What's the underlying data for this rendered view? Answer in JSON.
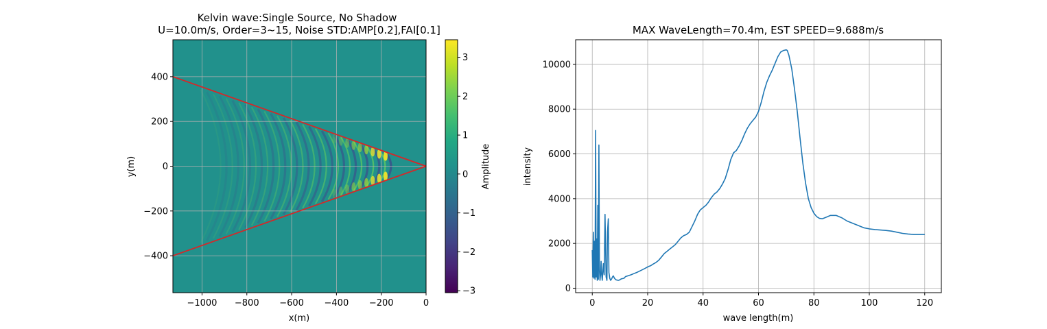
{
  "chart_data": [
    {
      "type": "heatmap",
      "title_line1": "Kelvin wave:Single Source, No Shadow",
      "title_line2": "U=10.0m/s, Order=3~15, Noise STD:AMP[0.2],FAI[0.1]",
      "xlabel": "x(m)",
      "ylabel": "y(m)",
      "xlim": [
        -1130,
        0
      ],
      "ylim": [
        -565,
        565
      ],
      "x_ticks": [
        -1000,
        -800,
        -600,
        -400,
        -200,
        0
      ],
      "x_tick_labels": [
        "−1000",
        "−800",
        "−600",
        "−400",
        "−200",
        "0"
      ],
      "y_ticks": [
        400,
        200,
        0,
        -200,
        -400
      ],
      "y_tick_labels": [
        "400",
        "200",
        "0",
        "−200",
        "−400"
      ],
      "grid": true,
      "colormap": "viridis",
      "colorbar": {
        "label": "Amplitude",
        "min": -3.05,
        "max": 3.45,
        "ticks": [
          3,
          2,
          1,
          0,
          -1,
          -2,
          -3
        ],
        "tick_labels": [
          "3",
          "2",
          "1",
          "0",
          "−1",
          "−2",
          "−3"
        ]
      },
      "wedge_lines": {
        "color": "#d62728",
        "apex": [
          0,
          0
        ],
        "upper_end": [
          -1130,
          400
        ],
        "lower_end": [
          -1130,
          -400
        ]
      }
    },
    {
      "type": "line",
      "title": "MAX WaveLength=70.4m, EST SPEED=9.688m/s",
      "xlabel": "wave length(m)",
      "ylabel": "intensity",
      "xlim": [
        -6,
        126
      ],
      "ylim": [
        -200,
        11100
      ],
      "x_ticks": [
        0,
        20,
        40,
        60,
        80,
        100,
        120
      ],
      "x_tick_labels": [
        "0",
        "20",
        "40",
        "60",
        "80",
        "100",
        "120"
      ],
      "y_ticks": [
        0,
        2000,
        4000,
        6000,
        8000,
        10000
      ],
      "y_tick_labels": [
        "0",
        "2000",
        "4000",
        "6000",
        "8000",
        "10000"
      ],
      "grid": true,
      "line_color": "#1f77b4",
      "series": [
        {
          "x": [
            0,
            0.2,
            0.4,
            0.6,
            0.8,
            1.0,
            1.2,
            1.4,
            1.6,
            1.8,
            2.0,
            2.2,
            2.4,
            2.6,
            2.8,
            3.0,
            3.2,
            3.4,
            3.6,
            3.8,
            4.0,
            4.3,
            4.6,
            5.0,
            5.3,
            5.5,
            5.8,
            6.0,
            6.3,
            6.6,
            6.8,
            7.0,
            7.3,
            7.6,
            8.0,
            8.5,
            9,
            9.5,
            10,
            10.5,
            11,
            11.5,
            12,
            13,
            14,
            15,
            16,
            17,
            18,
            19,
            20,
            21,
            22,
            23,
            24,
            25,
            26,
            27,
            28,
            29,
            30,
            31,
            32,
            33,
            34,
            35,
            36,
            37,
            38,
            39,
            40,
            41,
            42,
            43,
            44,
            45,
            46,
            47,
            48,
            49,
            50,
            51,
            52,
            53,
            54,
            55,
            56,
            57,
            58,
            59,
            60,
            61,
            62,
            63,
            64,
            65,
            66,
            67,
            68,
            69,
            70,
            70.4,
            71,
            72,
            73,
            74,
            75,
            76,
            77,
            78,
            79,
            80,
            81,
            82,
            83,
            84,
            85,
            86,
            88,
            90,
            92,
            94,
            96,
            98,
            100,
            102,
            104,
            106,
            108,
            110,
            112,
            114,
            116,
            118,
            120
          ],
          "y": [
            1700,
            500,
            2500,
            450,
            2100,
            400,
            7050,
            500,
            2200,
            350,
            3700,
            400,
            6400,
            800,
            350,
            600,
            1200,
            600,
            350,
            700,
            1100,
            600,
            3300,
            500,
            350,
            2500,
            3100,
            700,
            450,
            350,
            380,
            420,
            500,
            550,
            450,
            380,
            360,
            350,
            380,
            420,
            430,
            450,
            520,
            560,
            600,
            650,
            700,
            760,
            820,
            880,
            950,
            1000,
            1080,
            1150,
            1250,
            1400,
            1550,
            1650,
            1750,
            1850,
            1950,
            2100,
            2250,
            2350,
            2400,
            2500,
            2750,
            3000,
            3300,
            3500,
            3600,
            3700,
            3850,
            4050,
            4200,
            4300,
            4450,
            4650,
            4900,
            5300,
            5750,
            6050,
            6150,
            6350,
            6600,
            6900,
            7150,
            7350,
            7500,
            7650,
            7900,
            8300,
            8800,
            9200,
            9500,
            9750,
            10050,
            10350,
            10550,
            10620,
            10650,
            10620,
            10400,
            9800,
            8900,
            7900,
            6700,
            5600,
            4700,
            4000,
            3600,
            3350,
            3200,
            3120,
            3100,
            3150,
            3200,
            3250,
            3250,
            3150,
            3000,
            2900,
            2800,
            2700,
            2650,
            2620,
            2600,
            2580,
            2550,
            2500,
            2450,
            2420,
            2400,
            2400,
            2400
          ]
        }
      ]
    }
  ]
}
